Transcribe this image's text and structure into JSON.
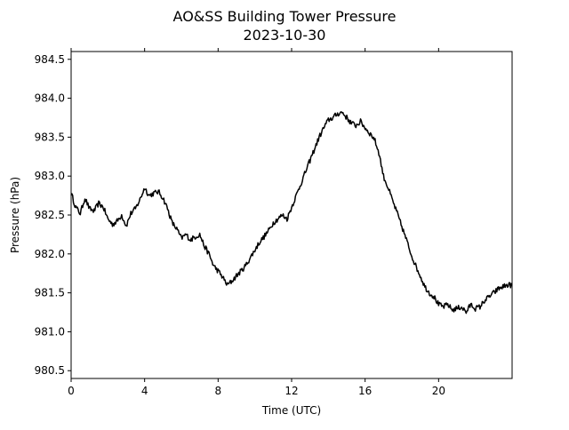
{
  "chart_data": {
    "type": "line",
    "title": "AO&SS Building Tower Pressure",
    "subtitle": "2023-10-30",
    "xlabel": "Time (UTC)",
    "ylabel": "Pressure (hPa)",
    "xlim": [
      0,
      24
    ],
    "ylim": [
      980.4,
      984.6
    ],
    "x_ticks": [
      0,
      4,
      8,
      12,
      16,
      20
    ],
    "x_tick_labels": [
      "0",
      "4",
      "8",
      "12",
      "16",
      "20"
    ],
    "y_ticks": [
      980.5,
      981.0,
      981.5,
      982.0,
      982.5,
      983.0,
      983.5,
      984.0,
      984.5
    ],
    "y_tick_labels": [
      "980.5",
      "981.0",
      "981.5",
      "982.0",
      "982.5",
      "983.0",
      "983.5",
      "984.0",
      "984.5"
    ],
    "grid": false,
    "line_color": "#000000",
    "series": [
      {
        "x": [
          0.0,
          0.25,
          0.5,
          0.75,
          1.0,
          1.25,
          1.5,
          1.75,
          2.0,
          2.25,
          2.5,
          2.75,
          3.0,
          3.25,
          3.5,
          3.75,
          4.0,
          4.25,
          4.5,
          4.75,
          5.0,
          5.25,
          5.5,
          5.75,
          6.0,
          6.25,
          6.5,
          6.75,
          7.0,
          7.25,
          7.5,
          7.75,
          8.0,
          8.25,
          8.5,
          8.75,
          9.0,
          9.25,
          9.5,
          9.75,
          10.0,
          10.25,
          10.5,
          10.75,
          11.0,
          11.25,
          11.5,
          11.75,
          12.0,
          12.25,
          12.5,
          12.75,
          13.0,
          13.25,
          13.5,
          13.75,
          14.0,
          14.25,
          14.5,
          14.75,
          15.0,
          15.25,
          15.5,
          15.75,
          16.0,
          16.25,
          16.5,
          16.75,
          17.0,
          17.25,
          17.5,
          17.75,
          18.0,
          18.25,
          18.5,
          18.75,
          19.0,
          19.25,
          19.5,
          19.75,
          20.0,
          20.25,
          20.5,
          20.75,
          21.0,
          21.25,
          21.5,
          21.75,
          22.0,
          22.25,
          22.5,
          22.75,
          23.0,
          23.25,
          23.5,
          23.75,
          24.0
        ],
        "values": [
          982.78,
          982.6,
          982.52,
          982.72,
          982.58,
          982.55,
          982.65,
          982.6,
          982.45,
          982.38,
          982.42,
          982.5,
          982.36,
          982.52,
          982.58,
          982.7,
          982.85,
          982.75,
          982.78,
          982.8,
          982.72,
          982.58,
          982.4,
          982.32,
          982.2,
          982.25,
          982.18,
          982.22,
          982.25,
          982.1,
          982.0,
          981.85,
          981.78,
          981.7,
          981.6,
          981.65,
          981.72,
          981.78,
          981.85,
          981.95,
          982.05,
          982.15,
          982.22,
          982.3,
          982.4,
          982.45,
          982.5,
          982.45,
          982.6,
          982.75,
          982.9,
          983.05,
          983.2,
          983.35,
          983.5,
          983.62,
          983.72,
          983.75,
          983.8,
          983.82,
          983.75,
          983.68,
          983.65,
          983.7,
          983.62,
          983.55,
          983.48,
          983.3,
          983.0,
          982.85,
          982.68,
          982.52,
          982.35,
          982.18,
          982.0,
          981.85,
          981.72,
          981.58,
          981.5,
          981.45,
          981.35,
          981.32,
          981.35,
          981.28,
          981.3,
          981.32,
          981.25,
          981.35,
          981.3,
          981.32,
          981.4,
          981.45,
          981.5,
          981.55,
          981.58,
          981.6,
          981.6
        ]
      }
    ]
  }
}
